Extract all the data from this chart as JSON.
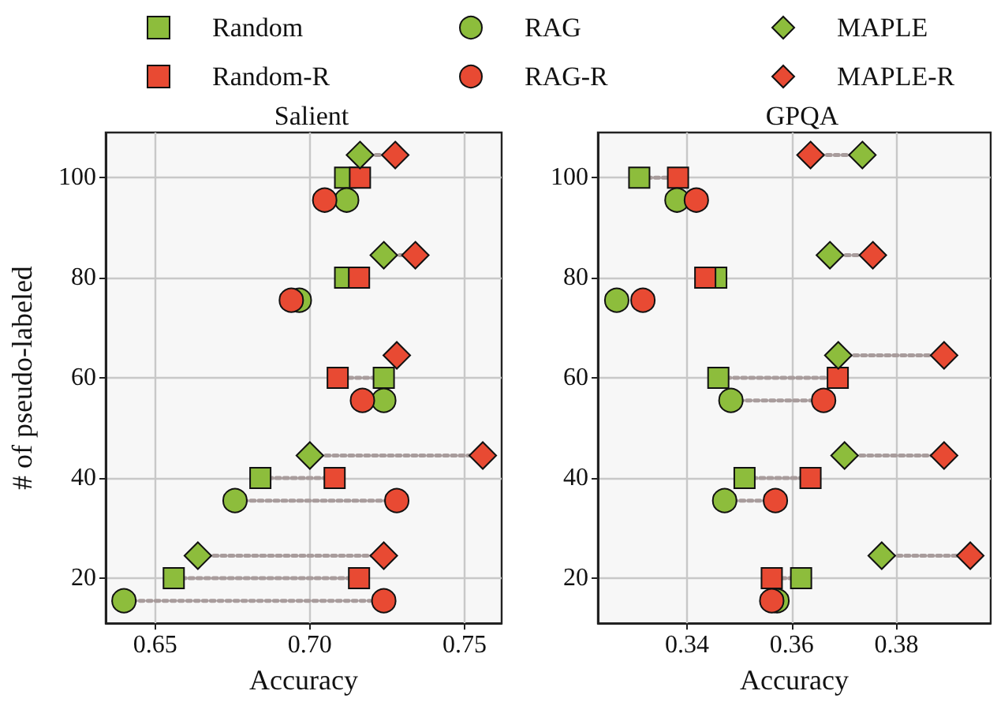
{
  "chart_data": [
    {
      "type": "scatter",
      "title": "Salient",
      "xlabel": "Accuracy",
      "ylabel": "# of pseudo-labeled",
      "xlim": [
        0.634,
        0.762
      ],
      "xticks": [
        0.65,
        {
          "value": 0.7,
          "label": "0.70"
        },
        0.75
      ],
      "ylim": [
        11,
        109
      ],
      "yticks": [
        20,
        40,
        60,
        80,
        100
      ],
      "grid": true,
      "legend": "top",
      "series": [
        {
          "type": "line",
          "color": "#a89c9c",
          "line_style": "dotted",
          "marker": "none",
          "x": [
            0.656,
            0.7159
          ],
          "values": [
            20,
            20
          ]
        },
        {
          "type": "line",
          "color": "#a89c9c",
          "line_style": "dotted",
          "marker": "none",
          "x": [
            0.684,
            0.708
          ],
          "values": [
            40,
            40
          ]
        },
        {
          "type": "line",
          "color": "#a89c9c",
          "line_style": "dotted",
          "marker": "none",
          "x": [
            0.7239,
            0.709
          ],
          "values": [
            60,
            60
          ]
        },
        {
          "type": "line",
          "color": "#a89c9c",
          "line_style": "dotted",
          "marker": "none",
          "x": [
            0.6399,
            0.7239
          ],
          "values": [
            15.5,
            15.5
          ]
        },
        {
          "type": "line",
          "color": "#a89c9c",
          "line_style": "dotted",
          "marker": "none",
          "x": [
            0.6758,
            0.7281
          ],
          "values": [
            35.5,
            35.5
          ]
        },
        {
          "type": "line",
          "color": "#a89c9c",
          "line_style": "dotted",
          "marker": "none",
          "x": [
            0.6638,
            0.7239
          ],
          "values": [
            24.5,
            24.5
          ]
        },
        {
          "type": "line",
          "color": "#a89c9c",
          "line_style": "dotted",
          "marker": "none",
          "x": [
            0.7,
            0.7559
          ],
          "values": [
            44.5,
            44.5
          ]
        },
        {
          "type": "line",
          "color": "#a89c9c",
          "line_style": "dotted",
          "marker": "none",
          "x": [
            0.7239,
            0.7341
          ],
          "values": [
            84.5,
            84.5
          ]
        },
        {
          "type": "line",
          "color": "#a89c9c",
          "line_style": "dotted",
          "marker": "none",
          "x": [
            0.7162,
            0.7276
          ],
          "values": [
            104.5,
            104.5
          ]
        },
        {
          "name": "Random",
          "color": "#8dbd3c",
          "marker": "square",
          "x": [
            0.656,
            0.684,
            0.7239,
            0.7114,
            0.7114
          ],
          "values": [
            20,
            40,
            60,
            80,
            100
          ]
        },
        {
          "name": "Random-R",
          "color": "#e84a33",
          "marker": "square",
          "x": [
            0.7159,
            0.708,
            0.709,
            0.7159,
            0.7162
          ],
          "values": [
            20,
            40,
            60,
            80,
            100
          ]
        },
        {
          "name": "RAG",
          "color": "#8dbd3c",
          "marker": "circle",
          "x": [
            0.6399,
            0.6758,
            0.7239,
            0.6966,
            0.7119
          ],
          "values": [
            15.5,
            35.5,
            55.5,
            75.5,
            95.5
          ]
        },
        {
          "name": "RAG-R",
          "color": "#e84a33",
          "marker": "circle",
          "x": [
            0.7239,
            0.7281,
            0.717,
            0.694,
            0.7048
          ],
          "values": [
            15.5,
            35.5,
            55.5,
            75.5,
            95.5
          ]
        },
        {
          "name": "MAPLE",
          "color": "#8dbd3c",
          "marker": "diamond",
          "x": [
            0.6638,
            0.7,
            null,
            0.7239,
            0.7162
          ],
          "values": [
            24.5,
            44.5,
            null,
            84.5,
            104.5
          ]
        },
        {
          "name": "MAPLE-R",
          "color": "#e84a33",
          "marker": "diamond",
          "x": [
            0.7239,
            0.7559,
            0.7281,
            0.7341,
            0.7276
          ],
          "values": [
            24.5,
            44.5,
            64.5,
            84.5,
            104.5
          ]
        }
      ]
    },
    {
      "type": "scatter",
      "title": "GPQA",
      "xlabel": "Accuracy",
      "xlim": [
        0.323,
        0.398
      ],
      "xticks": [
        0.34,
        0.36,
        0.38
      ],
      "ylim": [
        11,
        109
      ],
      "yticks": [
        20,
        40,
        60,
        80,
        100
      ],
      "grid": true,
      "series": [
        {
          "type": "line",
          "color": "#a89c9c",
          "line_style": "dotted",
          "marker": "none",
          "x": [
            0.3618,
            0.3562
          ],
          "values": [
            20,
            20
          ]
        },
        {
          "type": "line",
          "color": "#a89c9c",
          "line_style": "dotted",
          "marker": "none",
          "x": [
            0.351,
            0.3636
          ],
          "values": [
            40,
            40
          ]
        },
        {
          "type": "line",
          "color": "#a89c9c",
          "line_style": "dotted",
          "marker": "none",
          "x": [
            0.346,
            0.3688
          ],
          "values": [
            60,
            60
          ]
        },
        {
          "type": "line",
          "color": "#a89c9c",
          "line_style": "dotted",
          "marker": "none",
          "x": [
            0.3309,
            0.3383
          ],
          "values": [
            100,
            100
          ]
        },
        {
          "type": "line",
          "color": "#a89c9c",
          "line_style": "dotted",
          "marker": "none",
          "x": [
            0.3472,
            0.3569
          ],
          "values": [
            35.5,
            35.5
          ]
        },
        {
          "type": "line",
          "color": "#a89c9c",
          "line_style": "dotted",
          "marker": "none",
          "x": [
            0.3484,
            0.3661
          ],
          "values": [
            55.5,
            55.5
          ]
        },
        {
          "type": "line",
          "color": "#a89c9c",
          "line_style": "dotted",
          "marker": "none",
          "x": [
            0.3772,
            0.3941
          ],
          "values": [
            24.5,
            24.5
          ]
        },
        {
          "type": "line",
          "color": "#a89c9c",
          "line_style": "dotted",
          "marker": "none",
          "x": [
            0.3701,
            0.3891
          ],
          "values": [
            44.5,
            44.5
          ]
        },
        {
          "type": "line",
          "color": "#a89c9c",
          "line_style": "dotted",
          "marker": "none",
          "x": [
            0.3689,
            0.3891
          ],
          "values": [
            64.5,
            64.5
          ]
        },
        {
          "type": "line",
          "color": "#a89c9c",
          "line_style": "dotted",
          "marker": "none",
          "x": [
            0.3673,
            0.3755
          ],
          "values": [
            84.5,
            84.5
          ]
        },
        {
          "type": "line",
          "color": "#a89c9c",
          "line_style": "dotted",
          "marker": "none",
          "x": [
            0.3735,
            0.3636
          ],
          "values": [
            104.5,
            104.5
          ]
        },
        {
          "name": "Random",
          "color": "#8dbd3c",
          "marker": "square",
          "x": [
            0.3618,
            0.351,
            0.346,
            0.3456,
            0.3309
          ],
          "values": [
            20,
            40,
            60,
            80,
            100
          ]
        },
        {
          "name": "Random-R",
          "color": "#e84a33",
          "marker": "square",
          "x": [
            0.3562,
            0.3636,
            0.3688,
            0.3435,
            0.3383
          ],
          "values": [
            20,
            40,
            60,
            80,
            100
          ]
        },
        {
          "name": "RAG",
          "color": "#8dbd3c",
          "marker": "circle",
          "x": [
            0.3572,
            0.3472,
            0.3484,
            0.3266,
            0.3381
          ],
          "values": [
            15.5,
            35.5,
            55.5,
            75.5,
            95.5
          ]
        },
        {
          "name": "RAG-R",
          "color": "#e84a33",
          "marker": "circle",
          "x": [
            0.3562,
            0.3569,
            0.3661,
            0.3316,
            0.3418
          ],
          "values": [
            15.5,
            35.5,
            55.5,
            75.5,
            95.5
          ]
        },
        {
          "name": "MAPLE",
          "color": "#8dbd3c",
          "marker": "diamond",
          "x": [
            0.3772,
            0.3701,
            0.3689,
            0.3673,
            0.3735
          ],
          "values": [
            24.5,
            44.5,
            64.5,
            84.5,
            104.5
          ]
        },
        {
          "name": "MAPLE-R",
          "color": "#e84a33",
          "marker": "diamond",
          "x": [
            0.3941,
            0.3891,
            0.3891,
            0.3755,
            0.3636
          ],
          "values": [
            24.5,
            44.5,
            64.5,
            84.5,
            104.5
          ]
        }
      ]
    }
  ]
}
